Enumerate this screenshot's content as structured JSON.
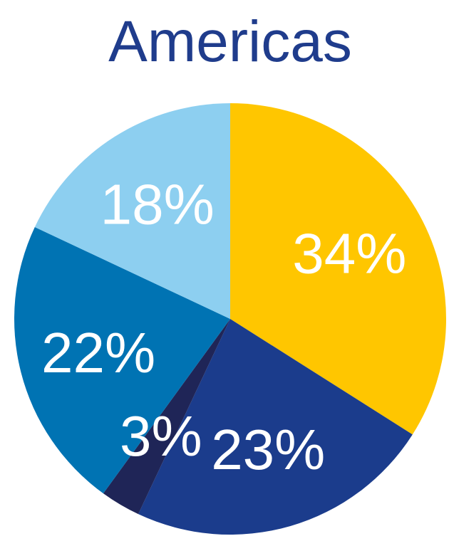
{
  "chart_data": {
    "type": "pie",
    "title": "Americas",
    "categories": [
      null,
      null,
      null,
      null,
      null
    ],
    "values": [
      34,
      23,
      3,
      22,
      18
    ],
    "value_labels": [
      "34%",
      "23%",
      "3%",
      "22%",
      "18%"
    ],
    "colors": [
      "#FFC600",
      "#1B3C8C",
      "#1F2557",
      "#0073B3",
      "#8DCFF0"
    ]
  }
}
